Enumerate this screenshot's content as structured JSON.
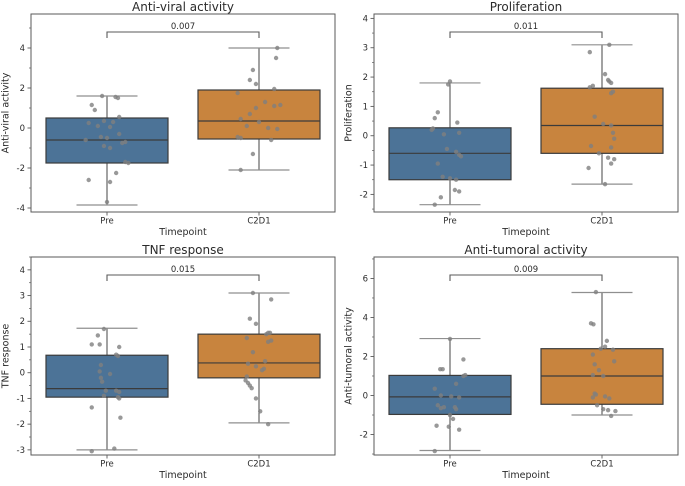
{
  "figure": {
    "xlabel": "Timepoint",
    "categories": [
      "Pre",
      "C2D1"
    ],
    "palette": {
      "background": "#ffffff",
      "box_fill": [
        "#4c7397",
        "#c8843e"
      ],
      "box_edge": "#3b3b3b",
      "median": "#3b3b3b",
      "whisker": "#454545",
      "cap": "#8f8f8f",
      "point": "#7f7f7f",
      "spine": "#5a5a5a",
      "bracket": "#5a5a5a",
      "text": "#2b2b2b"
    }
  },
  "chart_data": [
    {
      "type": "box",
      "title": "Anti-viral activity",
      "ylabel": "Anti-viral activity",
      "xlabel": "Timepoint",
      "categories": [
        "Pre",
        "C2D1"
      ],
      "p_value": "0.007",
      "ylim": [
        -4.2,
        5.7
      ],
      "yticks": [
        -4,
        -2,
        0,
        2,
        4
      ],
      "grid": false,
      "legend": null,
      "series": [
        {
          "name": "Pre",
          "whislo": -3.85,
          "q1": -1.75,
          "med": -0.6,
          "q3": 0.5,
          "whishi": 1.6,
          "points": [
            [
              -0.08,
              1.6
            ],
            [
              0.14,
              1.55
            ],
            [
              0.18,
              1.5
            ],
            [
              -0.25,
              1.15
            ],
            [
              -0.2,
              0.9
            ],
            [
              0.2,
              0.55
            ],
            [
              -0.05,
              0.35
            ],
            [
              0.1,
              0.3
            ],
            [
              -0.3,
              0.25
            ],
            [
              -0.15,
              0.1
            ],
            [
              0.05,
              0.05
            ],
            [
              0.2,
              -0.3
            ],
            [
              -0.1,
              -0.45
            ],
            [
              0.0,
              -0.5
            ],
            [
              -0.35,
              -0.6
            ],
            [
              0.3,
              -0.7
            ],
            [
              0.25,
              -0.75
            ],
            [
              -0.05,
              -0.9
            ],
            [
              0.05,
              -1.0
            ],
            [
              0.3,
              -1.7
            ],
            [
              0.35,
              -1.75
            ],
            [
              0.15,
              -2.25
            ],
            [
              -0.3,
              -2.6
            ],
            [
              0.05,
              -2.7
            ],
            [
              0.0,
              -3.7
            ]
          ]
        },
        {
          "name": "C2D1",
          "whislo": -2.1,
          "q1": -0.55,
          "med": 0.35,
          "q3": 1.9,
          "whishi": 4.0,
          "points": [
            [
              0.3,
              4.0
            ],
            [
              0.28,
              3.5
            ],
            [
              -0.1,
              2.9
            ],
            [
              -0.15,
              2.4
            ],
            [
              -0.05,
              2.2
            ],
            [
              0.25,
              1.95
            ],
            [
              -0.35,
              1.75
            ],
            [
              0.1,
              1.3
            ],
            [
              0.35,
              1.15
            ],
            [
              0.25,
              1.1
            ],
            [
              -0.05,
              1.0
            ],
            [
              -0.15,
              0.7
            ],
            [
              -0.3,
              0.45
            ],
            [
              0.0,
              0.3
            ],
            [
              -0.2,
              0.1
            ],
            [
              0.15,
              0.0
            ],
            [
              0.3,
              -0.05
            ],
            [
              -0.35,
              -0.45
            ],
            [
              -0.3,
              -0.5
            ],
            [
              0.2,
              -0.6
            ],
            [
              -0.1,
              -1.3
            ],
            [
              -0.3,
              -2.1
            ]
          ]
        }
      ]
    },
    {
      "type": "box",
      "title": "Proliferation",
      "ylabel": "Proliferation",
      "xlabel": "Timepoint",
      "categories": [
        "Pre",
        "C2D1"
      ],
      "p_value": "0.011",
      "ylim": [
        -2.6,
        4.15
      ],
      "yticks": [
        -2,
        -1,
        0,
        1,
        2,
        3,
        4
      ],
      "grid": false,
      "legend": null,
      "series": [
        {
          "name": "Pre",
          "whislo": -2.35,
          "q1": -1.5,
          "med": -0.6,
          "q3": 0.27,
          "whishi": 1.8,
          "points": [
            [
              0.0,
              1.85
            ],
            [
              -0.03,
              1.75
            ],
            [
              -0.2,
              0.8
            ],
            [
              -0.25,
              0.6
            ],
            [
              0.12,
              0.45
            ],
            [
              -0.28,
              0.25
            ],
            [
              -0.3,
              0.2
            ],
            [
              0.15,
              0.1
            ],
            [
              -0.1,
              0.05
            ],
            [
              -0.05,
              -0.45
            ],
            [
              0.1,
              -0.55
            ],
            [
              0.15,
              -0.65
            ],
            [
              0.18,
              -0.7
            ],
            [
              -0.2,
              -0.95
            ],
            [
              -0.12,
              -1.4
            ],
            [
              0.0,
              -1.45
            ],
            [
              0.1,
              -1.5
            ],
            [
              0.08,
              -1.85
            ],
            [
              0.15,
              -1.9
            ],
            [
              -0.15,
              -2.1
            ],
            [
              -0.25,
              -2.35
            ]
          ]
        },
        {
          "name": "C2D1",
          "whislo": -1.65,
          "q1": -0.6,
          "med": 0.35,
          "q3": 1.62,
          "whishi": 3.1,
          "points": [
            [
              0.12,
              3.1
            ],
            [
              -0.2,
              2.85
            ],
            [
              0.05,
              2.1
            ],
            [
              0.1,
              1.9
            ],
            [
              0.12,
              1.85
            ],
            [
              0.15,
              1.8
            ],
            [
              -0.15,
              1.7
            ],
            [
              -0.2,
              1.65
            ],
            [
              0.18,
              1.5
            ],
            [
              0.15,
              1.45
            ],
            [
              -0.12,
              0.65
            ],
            [
              0.02,
              0.4
            ],
            [
              0.15,
              0.35
            ],
            [
              0.18,
              0.1
            ],
            [
              0.2,
              -0.1
            ],
            [
              -0.18,
              -0.35
            ],
            [
              0.15,
              -0.4
            ],
            [
              -0.05,
              -0.6
            ],
            [
              0.1,
              -0.75
            ],
            [
              0.2,
              -0.8
            ],
            [
              0.15,
              -0.95
            ],
            [
              -0.22,
              -1.1
            ],
            [
              0.05,
              -1.65
            ]
          ]
        }
      ]
    },
    {
      "type": "box",
      "title": "TNF response",
      "ylabel": "TNF response",
      "xlabel": "Timepoint",
      "categories": [
        "Pre",
        "C2D1"
      ],
      "p_value": "0.015",
      "ylim": [
        -3.2,
        4.5
      ],
      "yticks": [
        -3,
        -2,
        -1,
        0,
        1,
        2,
        3,
        4
      ],
      "grid": false,
      "legend": null,
      "series": [
        {
          "name": "Pre",
          "whislo": -3.0,
          "q1": -0.95,
          "med": -0.62,
          "q3": 0.68,
          "whishi": 1.73,
          "points": [
            [
              -0.05,
              1.7
            ],
            [
              -0.15,
              1.45
            ],
            [
              -0.25,
              1.1
            ],
            [
              -0.12,
              1.1
            ],
            [
              0.2,
              1.0
            ],
            [
              0.15,
              0.7
            ],
            [
              0.18,
              0.65
            ],
            [
              -0.1,
              0.3
            ],
            [
              -0.12,
              0.05
            ],
            [
              0.05,
              -0.05
            ],
            [
              -0.1,
              -0.2
            ],
            [
              -0.08,
              -0.35
            ],
            [
              -0.02,
              -0.7
            ],
            [
              0.15,
              -0.7
            ],
            [
              0.2,
              -0.75
            ],
            [
              -0.05,
              -0.9
            ],
            [
              0.18,
              -0.95
            ],
            [
              0.2,
              -1.0
            ],
            [
              -0.25,
              -1.35
            ],
            [
              0.22,
              -1.75
            ],
            [
              0.12,
              -2.95
            ],
            [
              -0.25,
              -3.05
            ]
          ]
        },
        {
          "name": "C2D1",
          "whislo": -1.95,
          "q1": -0.2,
          "med": 0.38,
          "q3": 1.5,
          "whishi": 3.1,
          "points": [
            [
              -0.1,
              3.1
            ],
            [
              0.2,
              2.85
            ],
            [
              -0.15,
              2.1
            ],
            [
              -0.05,
              1.9
            ],
            [
              0.15,
              1.55
            ],
            [
              0.18,
              1.55
            ],
            [
              0.12,
              1.5
            ],
            [
              -0.2,
              1.35
            ],
            [
              0.2,
              1.25
            ],
            [
              0.15,
              1.2
            ],
            [
              -0.1,
              0.8
            ],
            [
              0.1,
              0.45
            ],
            [
              -0.18,
              0.35
            ],
            [
              -0.05,
              0.25
            ],
            [
              0.08,
              0.15
            ],
            [
              0.05,
              0.1
            ],
            [
              -0.2,
              -0.15
            ],
            [
              -0.22,
              -0.3
            ],
            [
              -0.18,
              -0.4
            ],
            [
              -0.15,
              -0.5
            ],
            [
              -0.12,
              -0.6
            ],
            [
              -0.05,
              -1.0
            ],
            [
              0.02,
              -1.5
            ],
            [
              0.15,
              -2.0
            ]
          ]
        }
      ]
    },
    {
      "type": "box",
      "title": "Anti-tumoral activity",
      "ylabel": "Anti-tumoral activity",
      "xlabel": "Timepoint",
      "categories": [
        "Pre",
        "C2D1"
      ],
      "p_value": "0.009",
      "ylim": [
        -3.05,
        7.1
      ],
      "yticks": [
        -2,
        0,
        2,
        4,
        6
      ],
      "grid": false,
      "legend": null,
      "series": [
        {
          "name": "Pre",
          "whislo": -2.82,
          "q1": -0.97,
          "med": -0.07,
          "q3": 1.03,
          "whishi": 2.92,
          "points": [
            [
              0.0,
              2.9
            ],
            [
              0.22,
              1.85
            ],
            [
              -0.12,
              1.35
            ],
            [
              -0.16,
              1.35
            ],
            [
              0.25,
              1.05
            ],
            [
              0.22,
              1.0
            ],
            [
              0.1,
              0.6
            ],
            [
              -0.25,
              0.35
            ],
            [
              -0.15,
              0.0
            ],
            [
              0.02,
              -0.05
            ],
            [
              0.15,
              -0.1
            ],
            [
              -0.2,
              -0.5
            ],
            [
              -0.1,
              -0.6
            ],
            [
              0.08,
              -0.6
            ],
            [
              -0.15,
              -0.65
            ],
            [
              0.1,
              -0.7
            ],
            [
              0.0,
              -1.0
            ],
            [
              0.05,
              -1.2
            ],
            [
              -0.22,
              -1.55
            ],
            [
              -0.02,
              -1.6
            ],
            [
              0.15,
              -1.75
            ],
            [
              -0.25,
              -2.85
            ]
          ]
        },
        {
          "name": "C2D1",
          "whislo": -1.0,
          "q1": -0.45,
          "med": 1.0,
          "q3": 2.4,
          "whishi": 5.28,
          "points": [
            [
              -0.1,
              5.3
            ],
            [
              -0.18,
              3.7
            ],
            [
              -0.14,
              3.65
            ],
            [
              0.08,
              2.8
            ],
            [
              0.05,
              2.5
            ],
            [
              -0.02,
              2.4
            ],
            [
              0.18,
              2.35
            ],
            [
              -0.15,
              2.1
            ],
            [
              0.2,
              1.75
            ],
            [
              -0.12,
              1.6
            ],
            [
              -0.05,
              1.3
            ],
            [
              -0.15,
              1.05
            ],
            [
              0.02,
              1.0
            ],
            [
              -0.12,
              0.1
            ],
            [
              -0.1,
              0.05
            ],
            [
              0.05,
              -0.05
            ],
            [
              -0.15,
              -0.1
            ],
            [
              0.12,
              -0.15
            ],
            [
              -0.08,
              -0.5
            ],
            [
              0.02,
              -0.7
            ],
            [
              0.1,
              -0.75
            ],
            [
              0.22,
              -0.8
            ],
            [
              0.15,
              -1.05
            ]
          ]
        }
      ]
    }
  ]
}
